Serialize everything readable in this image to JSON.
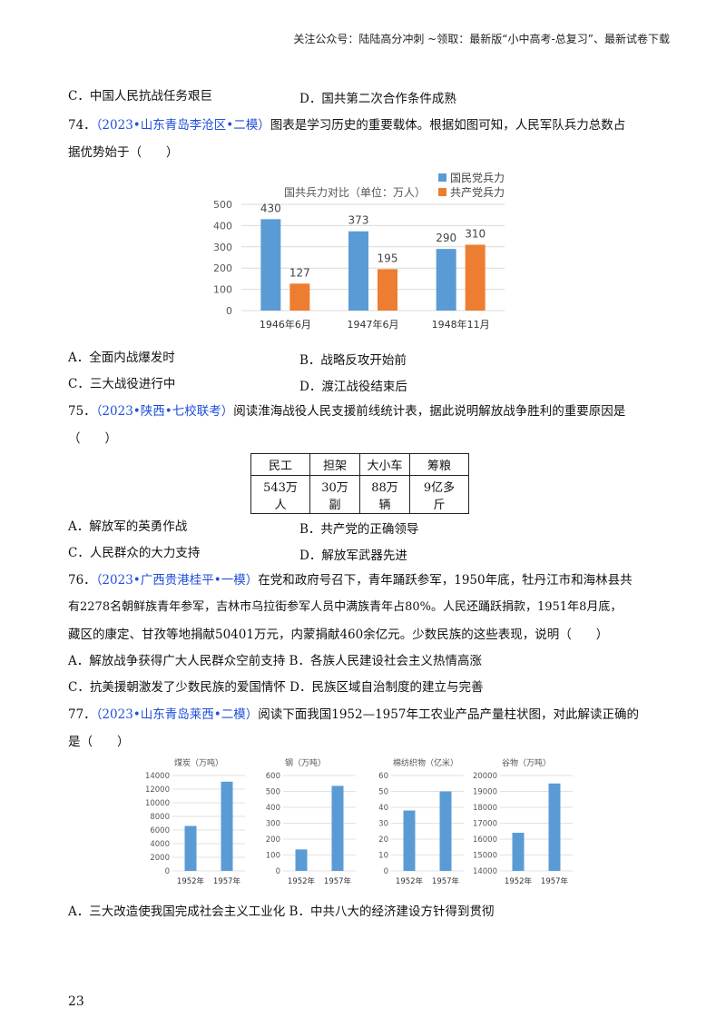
{
  "header": "关注公众号：陆陆高分冲刺 ~领取：最新版“小中高考-总复习”、最新试卷下载",
  "q73_tail": {
    "c": "C．中国人民抗战任务艰巨",
    "d": "D．国共第二次合作条件成熟"
  },
  "q74": {
    "num": "74．",
    "source": "（2023•山东青岛李沧区•二模）",
    "stem1": "图表是学习历史的重要载体。根据如图可知，人民军队兵力总数占",
    "stem2": "据优势始于（　　）",
    "a": "A．全面内战爆发时",
    "b": "B．战略反攻开始前",
    "c": "C．三大战役进行中",
    "d": "D．渡江战役结束后"
  },
  "q75": {
    "num": "75．",
    "source": "（2023•陕西•七校联考）",
    "stem1": "阅读淮海战役人民支援前线统计表，据此说明解放战争胜利的重要原因是",
    "stem2": "（　　）",
    "table_headers": [
      "民工",
      "担架",
      "大小车",
      "筹粮"
    ],
    "table_values_l1": [
      "543万",
      "30万",
      "88万",
      "9亿多"
    ],
    "table_values_l2": [
      "人",
      "副",
      "辆",
      "斤"
    ],
    "a": "A．解放军的英勇作战",
    "b": "B．共产党的正确领导",
    "c": "C．人民群众的大力支持",
    "d": "D．解放军武器先进"
  },
  "q76": {
    "num": "76．",
    "source": "（2023•广西贵港桂平•一模）",
    "stem1": "在党和政府号召下，青年踊跃参军，1950年底，牡丹江市和海林县共",
    "stem2": "有2278名朝鲜族青年参军，吉林市乌拉街参军人员中满族青年占80%。人民还踊跃捐款，1951年8月底，",
    "stem3": "藏区的康定、甘孜等地捐献50401万元，内蒙捐献460余亿元。少数民族的这些表现，说明（　　）",
    "ab": "A．解放战争获得广大人民群众空前支持 B．各族人民建设社会主义热情高涨",
    "cd": "C．抗美援朝激发了少数民族的爱国情怀 D．民族区域自治制度的建立与完善"
  },
  "q77": {
    "num": "77．",
    "source": "（2023•山东青岛莱西•二模）",
    "stem1": "阅读下面我国1952—1957年工农业产品产量柱状图，对此解读正确的",
    "stem2": "是（　　）",
    "ab": "A．三大改造使我国完成社会主义工业化 B．中共八大的经济建设方针得到贯彻"
  },
  "page_number": "23",
  "chart_data": [
    {
      "type": "bar",
      "title": "国共兵力对比（单位：万人）",
      "categories": [
        "1946年6月",
        "1947年6月",
        "1948年11月"
      ],
      "series": [
        {
          "name": "国民党兵力",
          "values": [
            430,
            373,
            290
          ],
          "color": "#5b9bd5"
        },
        {
          "name": "共产党兵力",
          "values": [
            127,
            195,
            310
          ],
          "color": "#ed7d31"
        }
      ],
      "yticks": [
        0,
        100,
        200,
        300,
        400,
        500
      ],
      "ylim": [
        0,
        500
      ],
      "legend": "top-right"
    },
    {
      "type": "bar",
      "title": "煤炭（万吨）",
      "categories": [
        "1952年",
        "1957年"
      ],
      "values": [
        6600,
        13100
      ],
      "yticks": [
        0,
        2000,
        4000,
        6000,
        8000,
        10000,
        12000,
        14000
      ],
      "ylim": [
        0,
        14000
      ],
      "color": "#5b9bd5"
    },
    {
      "type": "bar",
      "title": "钢（万吨）",
      "categories": [
        "1952年",
        "1957年"
      ],
      "values": [
        135,
        535
      ],
      "yticks": [
        0,
        100,
        200,
        300,
        400,
        500,
        600
      ],
      "ylim": [
        0,
        600
      ],
      "color": "#5b9bd5"
    },
    {
      "type": "bar",
      "title": "棉纺织物（亿米）",
      "categories": [
        "1952年",
        "1957年"
      ],
      "values": [
        38,
        50
      ],
      "yticks": [
        0,
        10,
        20,
        30,
        40,
        50,
        60
      ],
      "ylim": [
        0,
        60
      ],
      "color": "#5b9bd5"
    },
    {
      "type": "bar",
      "title": "谷物（万吨）",
      "categories": [
        "1952年",
        "1957年"
      ],
      "values": [
        16400,
        19500
      ],
      "yticks": [
        14000,
        15000,
        16000,
        17000,
        18000,
        19000,
        20000
      ],
      "ylim": [
        14000,
        20000
      ],
      "color": "#5b9bd5"
    }
  ]
}
